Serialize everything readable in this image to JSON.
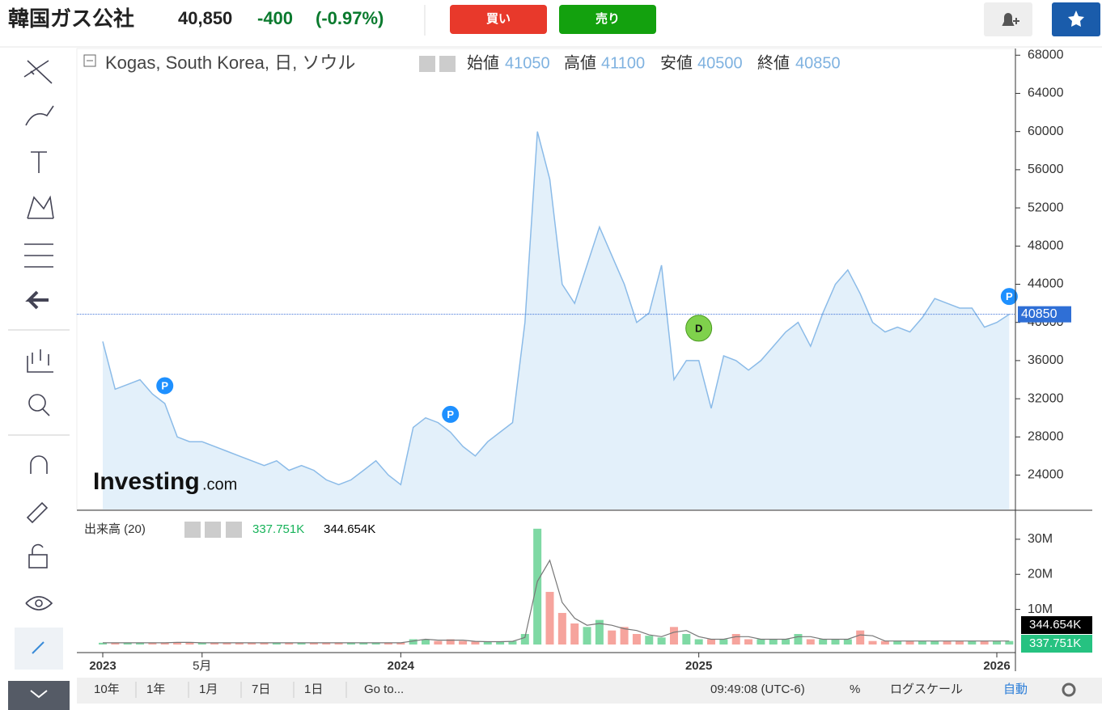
{
  "header": {
    "title": "韓国ガス公社",
    "price": "40,850",
    "change": "-400",
    "change_pct": "(-0.97%)",
    "buy": "買い",
    "sell": "売り"
  },
  "legend": {
    "symbol": "Kogas, South Korea, 日, ソウル",
    "open_label": "始値",
    "open": 41050,
    "high_label": "高値",
    "high": 41100,
    "low_label": "安値",
    "low": 40500,
    "close_label": "終値",
    "close": 40850,
    "volume_title": "出来高 (20)"
  },
  "logo": {
    "main": "Investing",
    "suffix": ".com"
  },
  "toolbar": {
    "ranges": [
      "10年",
      "1年",
      "1月",
      "7日",
      "1日"
    ],
    "goto": "Go to...",
    "time": "09:49:08 (UTC-6)",
    "pct": "%",
    "log": "ログスケール",
    "auto": "自動"
  },
  "chart_data": [
    {
      "type": "area",
      "color": "#8bbbe8",
      "fill": "#e3f0fa",
      "categories": [
        "2023",
        null,
        null,
        null,
        null,
        null,
        null,
        null,
        "5月",
        null,
        null,
        null,
        null,
        null,
        null,
        null,
        null,
        null,
        null,
        null,
        null,
        null,
        null,
        null,
        "2024",
        null,
        null,
        null,
        null,
        null,
        null,
        null,
        null,
        null,
        null,
        null,
        null,
        null,
        null,
        null,
        null,
        null,
        null,
        null,
        null,
        null,
        null,
        null,
        "2025",
        null,
        null,
        null,
        null,
        null,
        null,
        null,
        null,
        null,
        null,
        null,
        null,
        null,
        null,
        null,
        null,
        null,
        null,
        null,
        null,
        null,
        null,
        null,
        "2026",
        null
      ],
      "values": [
        38000,
        33000,
        33500,
        34000,
        32500,
        31500,
        28000,
        27500,
        27500,
        27000,
        26500,
        26000,
        25500,
        25000,
        25500,
        24500,
        25000,
        24500,
        23500,
        23000,
        23500,
        24500,
        25500,
        24000,
        23000,
        29000,
        30000,
        29500,
        28500,
        27000,
        26000,
        27500,
        28500,
        29500,
        40000,
        60000,
        55000,
        44000,
        42000,
        46000,
        50000,
        47000,
        44000,
        40000,
        41000,
        46000,
        34000,
        36000,
        36000,
        31000,
        36500,
        36000,
        35000,
        36000,
        37500,
        39000,
        40000,
        37500,
        41000,
        44000,
        45500,
        43000,
        40000,
        39000,
        39500,
        39000,
        40500,
        42500,
        42000,
        41500,
        41500,
        39500,
        40000,
        40850
      ],
      "ylim": [
        20400,
        68700
      ],
      "yticks": [
        24000,
        28000,
        32000,
        36000,
        40000,
        44000,
        48000,
        52000,
        56000,
        60000,
        64000,
        68000
      ],
      "annotations": [
        {
          "label": "P",
          "at": 5
        },
        {
          "label": "P",
          "at": 28
        },
        {
          "label": "D",
          "at": 48
        },
        {
          "label": "P",
          "at": 73
        }
      ]
    },
    {
      "type": "bar",
      "up_color": "#7fd9a4",
      "down_color": "#f6a49d",
      "values": [
        500000,
        500000,
        500000,
        500000,
        500000,
        500000,
        700000,
        500000,
        500000,
        500000,
        500000,
        500000,
        500000,
        500000,
        500000,
        500000,
        500000,
        500000,
        500000,
        500000,
        500000,
        500000,
        500000,
        500000,
        500000,
        1500000,
        1500000,
        1000000,
        1500000,
        1000000,
        800000,
        800000,
        800000,
        1000000,
        3000000,
        33000000,
        15000000,
        9000000,
        6000000,
        5000000,
        7000000,
        4000000,
        5000000,
        3000000,
        2500000,
        2000000,
        5000000,
        3000000,
        1500000,
        1500000,
        1500000,
        3000000,
        1500000,
        1500000,
        1500000,
        1500000,
        3000000,
        1500000,
        1500000,
        1500000,
        1500000,
        4000000,
        1000000,
        1000000,
        1000000,
        1000000,
        1000000,
        1000000,
        1000000,
        1000000,
        1000000,
        1000000,
        1000000,
        1000000
      ],
      "ylim": [
        -2300000,
        37800000
      ],
      "yticks": [
        {
          "value": 10000000,
          "label": "10M"
        },
        {
          "value": 20000000,
          "label": "20M"
        },
        {
          "value": 30000000,
          "label": "30M"
        }
      ],
      "volume_label": "337.751K",
      "ma_label": "344.654K"
    }
  ]
}
